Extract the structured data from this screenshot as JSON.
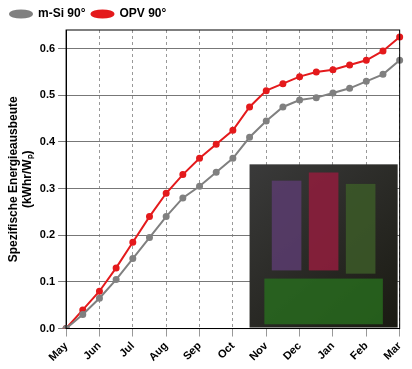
{
  "chart_data": {
    "type": "line",
    "y_label": [
      "Spezifische Energieausbeute",
      "(kWhr/Wₚ)"
    ],
    "categories": [
      "May",
      null,
      "Jun",
      null,
      "Jul",
      null,
      "Aug",
      null,
      "Sep",
      null,
      "Oct",
      null,
      "Nov",
      null,
      "Dec",
      null,
      "Jan",
      null,
      "Feb",
      null,
      "Mar"
    ],
    "series": [
      {
        "name": "m-Si 90°",
        "color": "#808080",
        "marker": "circle",
        "line_style": "solid",
        "values": [
          0,
          0.03,
          0.065,
          0.105,
          0.15,
          0.195,
          0.24,
          0.28,
          0.305,
          0.335,
          0.365,
          0.41,
          0.445,
          0.475,
          0.49,
          0.495,
          0.505,
          0.515,
          0.53,
          0.545,
          0.575
        ]
      },
      {
        "name": "OPV 90°",
        "color": "#e41a1c",
        "marker": "circle",
        "line_style": "solid",
        "values": [
          0,
          0.04,
          0.08,
          0.13,
          0.185,
          0.24,
          0.29,
          0.33,
          0.365,
          0.395,
          0.425,
          0.475,
          0.51,
          0.525,
          0.54,
          0.55,
          0.555,
          0.565,
          0.575,
          0.595,
          0.625
        ]
      }
    ],
    "ylim": [
      0,
      0.64
    ],
    "yticks": [
      {
        "value": 0,
        "label": "0.0"
      },
      0.1,
      0.2,
      0.3,
      0.4,
      0.5,
      0.6
    ],
    "grid": true,
    "legend": "upper left"
  }
}
